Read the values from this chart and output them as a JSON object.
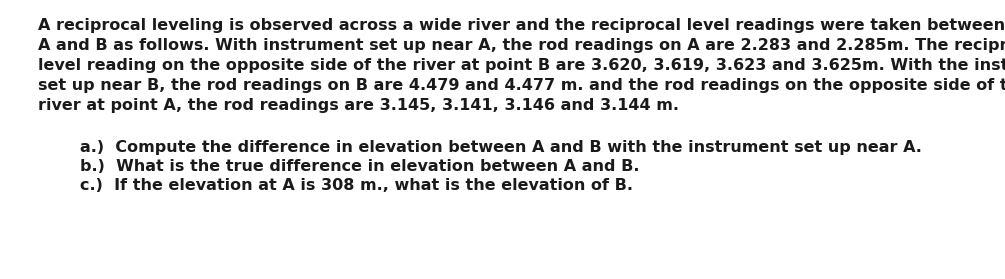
{
  "background_color": "#ffffff",
  "paragraph_lines": [
    "A reciprocal leveling is observed across a wide river and the reciprocal level readings were taken between points",
    "A and B as follows. With instrument set up near A, the rod readings on A are 2.283 and 2.285m. The reciprocal",
    "level reading on the opposite side of the river at point B are 3.620, 3.619, 3.623 and 3.625m. With the instrument",
    "set up near B, the rod readings on B are 4.479 and 4.477 m. and the rod readings on the opposite side of the",
    "river at point A, the rod readings are 3.145, 3.141, 3.146 and 3.144 m."
  ],
  "questions": [
    "a.)  Compute the difference in elevation between A and B with the instrument set up near A.",
    "b.)  What is the true difference in elevation between A and B.",
    "c.)  If the elevation at A is 308 m., what is the elevation of B."
  ],
  "font_size": 11.5,
  "text_color": "#1a1a1a",
  "font_family": "DejaVu Sans",
  "font_weight": "bold",
  "fig_width": 10.05,
  "fig_height": 2.79,
  "dpi": 100
}
